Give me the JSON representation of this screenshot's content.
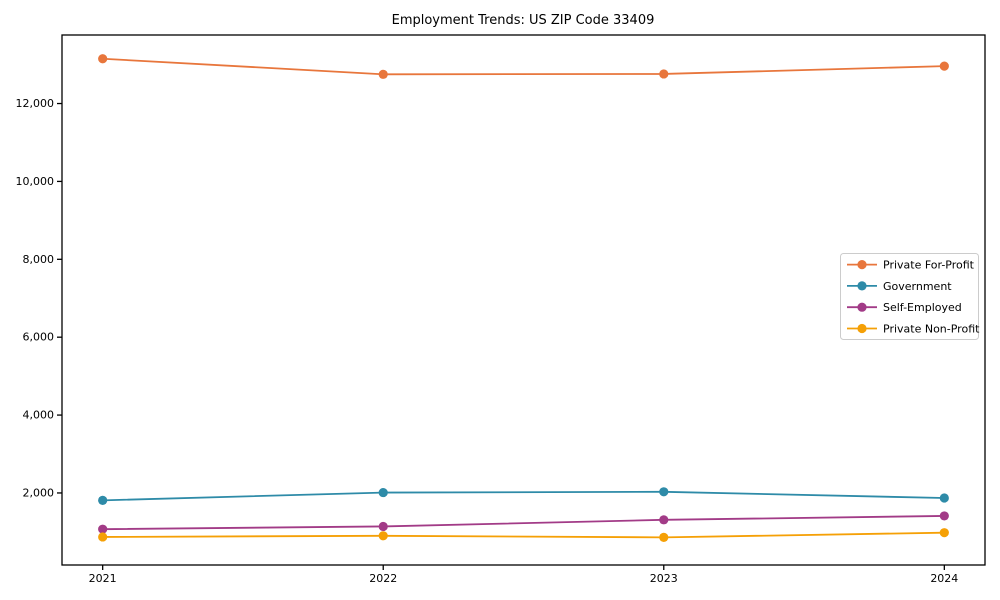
{
  "chart_data": {
    "type": "line",
    "title": "Employment Trends: US ZIP Code 33409",
    "x": [
      2021,
      2022,
      2023,
      2024
    ],
    "x_tick_labels": [
      "2021",
      "2022",
      "2023",
      "2024"
    ],
    "series": [
      {
        "name": "Private For-Profit",
        "color": "#E8763C",
        "values": [
          13150,
          12750,
          12760,
          12960
        ]
      },
      {
        "name": "Government",
        "color": "#2E8BA8",
        "values": [
          1810,
          2010,
          2030,
          1870
        ]
      },
      {
        "name": "Self-Employed",
        "color": "#A23B87",
        "values": [
          1070,
          1140,
          1310,
          1410
        ]
      },
      {
        "name": "Private Non-Profit",
        "color": "#F5A006",
        "values": [
          870,
          900,
          860,
          980
        ]
      }
    ],
    "yticks": [
      2000,
      4000,
      6000,
      8000,
      10000,
      12000
    ],
    "ytick_labels": [
      "2,000",
      "4,000",
      "6,000",
      "8,000",
      "10,000",
      "12,000"
    ],
    "ylim": [
      150,
      13760
    ],
    "xlim": [
      2020.855,
      2024.145
    ],
    "grid": false,
    "legend_position": "center-right",
    "marker": "circle",
    "axis_color": "#000000",
    "legend_border_color": "#cccccc",
    "background_color": "#ffffff"
  }
}
